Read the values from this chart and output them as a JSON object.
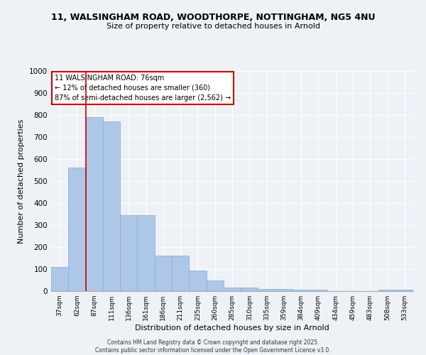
{
  "title_line1": "11, WALSINGHAM ROAD, WOODTHORPE, NOTTINGHAM, NG5 4NU",
  "title_line2": "Size of property relative to detached houses in Arnold",
  "xlabel": "Distribution of detached houses by size in Arnold",
  "ylabel": "Number of detached properties",
  "categories": [
    "37sqm",
    "62sqm",
    "87sqm",
    "111sqm",
    "136sqm",
    "161sqm",
    "186sqm",
    "211sqm",
    "235sqm",
    "260sqm",
    "285sqm",
    "310sqm",
    "335sqm",
    "359sqm",
    "384sqm",
    "409sqm",
    "434sqm",
    "459sqm",
    "483sqm",
    "508sqm",
    "533sqm"
  ],
  "values": [
    110,
    560,
    790,
    770,
    345,
    345,
    160,
    160,
    95,
    50,
    15,
    15,
    10,
    10,
    5,
    5,
    0,
    0,
    0,
    5,
    5
  ],
  "bar_color": "#aec6e8",
  "bar_edge_color": "#7bafd4",
  "vline_x_index": 2,
  "vline_color": "#cc0000",
  "annotation_box_text": "11 WALSINGHAM ROAD: 76sqm\n← 12% of detached houses are smaller (360)\n87% of semi-detached houses are larger (2,562) →",
  "annotation_box_color": "#cc0000",
  "ylim": [
    0,
    1000
  ],
  "yticks": [
    0,
    100,
    200,
    300,
    400,
    500,
    600,
    700,
    800,
    900,
    1000
  ],
  "bg_color": "#eef2f7",
  "grid_color": "#ffffff",
  "footer_line1": "Contains HM Land Registry data © Crown copyright and database right 2025.",
  "footer_line2": "Contains public sector information licensed under the Open Government Licence v3.0."
}
